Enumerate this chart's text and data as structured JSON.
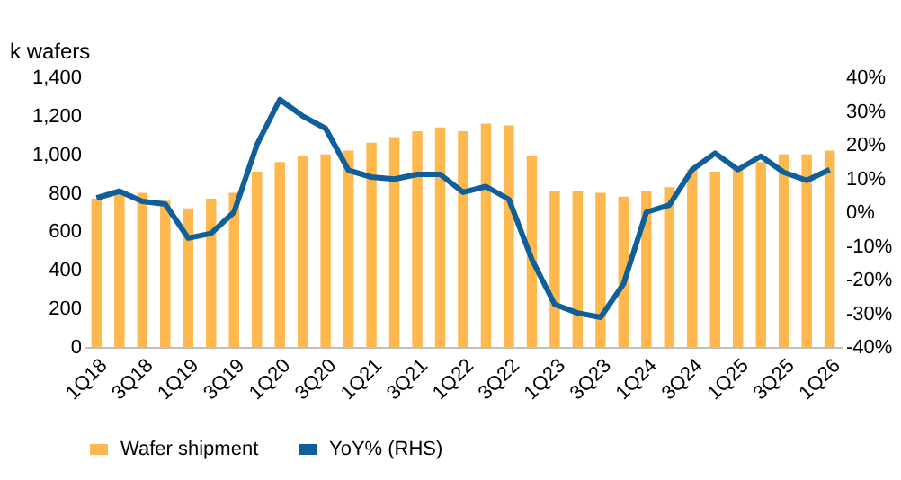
{
  "chart_data": {
    "type": "bar",
    "ylabel": "k wafers",
    "categories": [
      "1Q18",
      null,
      "3Q18",
      null,
      "1Q19",
      null,
      "3Q19",
      null,
      "1Q20",
      null,
      "3Q20",
      null,
      "1Q21",
      null,
      "3Q21",
      null,
      "1Q22",
      null,
      "3Q22",
      null,
      "1Q23",
      null,
      "3Q23",
      null,
      "1Q24",
      null,
      "3Q24",
      null,
      "1Q25",
      null,
      "3Q25",
      null,
      "1Q26"
    ],
    "series": [
      {
        "name": "Wafer shipment",
        "color": "#ffb84d",
        "values": [
          770,
          810,
          800,
          760,
          720,
          770,
          800,
          910,
          960,
          990,
          1000,
          1020,
          1060,
          1090,
          1120,
          1140,
          1120,
          1160,
          1150,
          990,
          810,
          810,
          800,
          780,
          810,
          830,
          920,
          910,
          920,
          960,
          1000,
          1000,
          1020
        ]
      },
      {
        "name": "YoY% (RHS)",
        "type": "line",
        "axis": "y2",
        "color": "#0f5f9b",
        "values": [
          4.2,
          6.2,
          3.2,
          2.4,
          -7.7,
          -6.3,
          0,
          20,
          33.4,
          28.5,
          24.8,
          12.4,
          10.4,
          9.8,
          11.2,
          11.2,
          5.9,
          7.6,
          3.8,
          -14,
          -27.4,
          -29.9,
          -31.2,
          -21.3,
          0,
          2.1,
          12.6,
          17.5,
          12.6,
          16.6,
          11.8,
          9.4,
          12.6
        ]
      }
    ],
    "ylim": [
      0,
      1400
    ],
    "yticks": [
      0,
      {
        "value": 200,
        "label": "200"
      },
      {
        "value": 400,
        "label": "400"
      },
      {
        "value": 600,
        "label": "600"
      },
      {
        "value": 800,
        "label": "800"
      },
      {
        "value": 1000,
        "label": "1,000"
      },
      {
        "value": 1200,
        "label": "1,200"
      },
      {
        "value": 1400,
        "label": "1,400"
      }
    ],
    "y2lim": [
      -40,
      40
    ],
    "y2ticks": [
      {
        "value": -40,
        "label": "-40%"
      },
      {
        "value": -30,
        "label": "-30%"
      },
      {
        "value": -20,
        "label": "-20%"
      },
      {
        "value": -10,
        "label": "-10%"
      },
      {
        "value": 0,
        "label": "0%"
      },
      {
        "value": 10,
        "label": "10%"
      },
      {
        "value": 20,
        "label": "20%"
      },
      {
        "value": 30,
        "label": "30%"
      },
      {
        "value": 40,
        "label": "40%"
      }
    ],
    "grid": false,
    "legend": "bottom",
    "line_style": "solid",
    "marker": "none"
  }
}
